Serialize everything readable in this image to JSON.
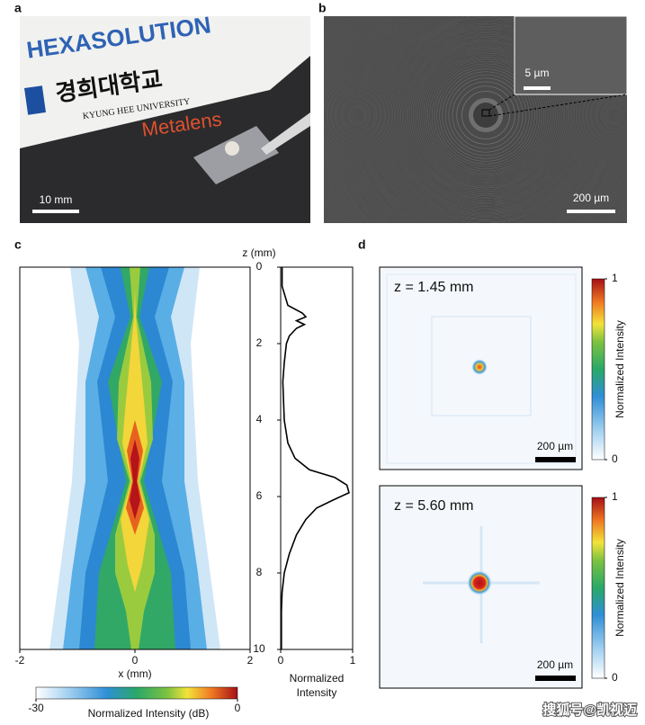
{
  "panels": {
    "a": {
      "label": "a",
      "brand": "HEXASOLUTION",
      "university_kr": "경희대학교",
      "university_en": "KYUNG HEE UNIVERSITY",
      "sample": "Metalens",
      "scale_bar": "10 mm"
    },
    "b": {
      "label": "b",
      "inset_scale_bar": "5 µm",
      "scale_bar": "200 µm"
    },
    "c": {
      "label": "c",
      "xlabel": "x (mm)",
      "xlim": [
        -2,
        2
      ],
      "xticks": [
        -2,
        0,
        2
      ],
      "zlabel": "z (mm)",
      "zlim": [
        0,
        10
      ],
      "zticks": [
        0,
        2,
        4,
        6,
        8,
        10
      ],
      "profile_xlabel": [
        "Normalized",
        "Intensity"
      ],
      "profile_xlim": [
        0,
        1
      ],
      "profile_xticks": [
        0,
        1
      ],
      "profile": {
        "z": [
          0,
          0.5,
          1.0,
          1.2,
          1.3,
          1.4,
          1.5,
          1.6,
          1.8,
          2.0,
          2.5,
          3.0,
          4.0,
          4.6,
          5.0,
          5.3,
          5.5,
          5.7,
          5.9,
          6.1,
          6.3,
          6.6,
          7.0,
          7.5,
          8.0,
          8.5,
          9.0,
          10
        ],
        "intensity": [
          0.02,
          0.02,
          0.1,
          0.3,
          0.35,
          0.22,
          0.33,
          0.22,
          0.12,
          0.08,
          0.05,
          0.03,
          0.05,
          0.1,
          0.2,
          0.4,
          0.75,
          0.92,
          0.95,
          0.72,
          0.5,
          0.35,
          0.22,
          0.12,
          0.05,
          0.02,
          0.01,
          0.01
        ]
      },
      "colorbar_label": "Normalized Intensity (dB)",
      "colorbar_ticks": [
        -30,
        0
      ]
    },
    "d": {
      "label": "d",
      "plots": [
        {
          "title": "z = 1.45 mm",
          "scale_bar": "200 µm",
          "colorbar_label": "Normalized Intensity",
          "colorbar_ticks": [
            0,
            1
          ]
        },
        {
          "title": "z = 5.60 mm",
          "scale_bar": "200 µm",
          "colorbar_label": "Normalized Intensity",
          "colorbar_ticks": [
            0,
            1
          ]
        }
      ]
    }
  },
  "watermark": "搜狐号@凯视迈"
}
